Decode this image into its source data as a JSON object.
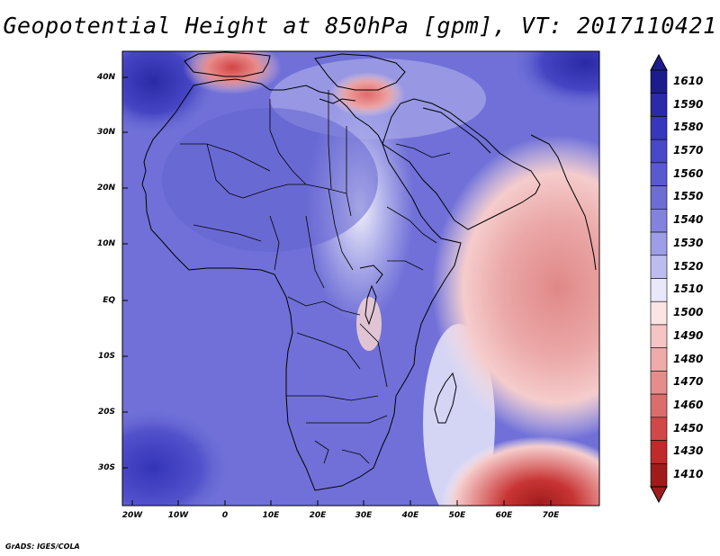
{
  "title": "Geopotential Height at 850hPa [gpm], VT: 2017110421",
  "credit": "GrADS: IGES/COLA",
  "map": {
    "region": "Africa and Middle East",
    "lon_range": [
      -23,
      80
    ],
    "lat_range": [
      -37,
      45
    ],
    "lat_labels": [
      "40N",
      "30N",
      "20N",
      "10N",
      "EQ",
      "10S",
      "20S",
      "30S"
    ],
    "lon_labels": [
      "20W",
      "10W",
      "0",
      "10E",
      "20E",
      "30E",
      "40E",
      "50E",
      "60E",
      "70E"
    ]
  },
  "colorbar": {
    "labels": [
      "1610",
      "1590",
      "1580",
      "1570",
      "1560",
      "1550",
      "1540",
      "1530",
      "1520",
      "1510",
      "1500",
      "1490",
      "1480",
      "1470",
      "1460",
      "1450",
      "1430",
      "1410"
    ],
    "colors": [
      "#1c1c8c",
      "#2b2ba8",
      "#3737bd",
      "#4848c8",
      "#5a5acf",
      "#6d6dd6",
      "#8383de",
      "#9e9ee6",
      "#bcbcef",
      "#e8e8fa",
      "#fbe4e4",
      "#f5c4c4",
      "#efaaaa",
      "#e58c8c",
      "#dc6d6d",
      "#d04848",
      "#bf2a2a",
      "#a01c1c"
    ]
  }
}
